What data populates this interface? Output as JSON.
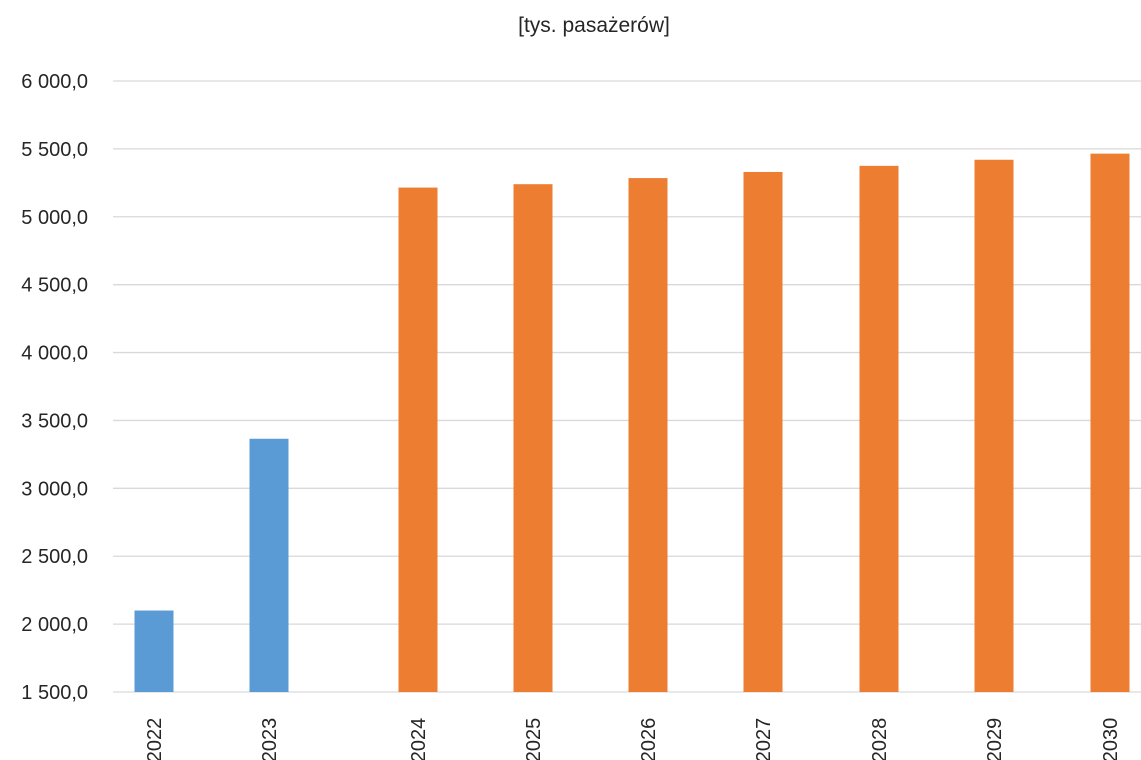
{
  "chart_data": {
    "type": "bar",
    "title": "[tys. pasażerów]",
    "xlabel": "",
    "ylabel": "",
    "ylim": [
      1500,
      6000
    ],
    "yticks": [
      1500,
      2000,
      2500,
      3000,
      3500,
      4000,
      4500,
      5000,
      5500,
      6000
    ],
    "ytick_labels": [
      "1 500,0",
      "2 000,0",
      "2 500,0",
      "3 000,0",
      "3 500,0",
      "4 000,0",
      "4 500,0",
      "5 000,0",
      "5 500,0",
      "6 000,0"
    ],
    "categories": [
      "2022",
      "2023",
      "2024",
      "2025",
      "2026",
      "2027",
      "2028",
      "2029",
      "2030"
    ],
    "series": [
      {
        "values": [
          2100,
          3365,
          null,
          null,
          null,
          null,
          null,
          null,
          null
        ],
        "color": "#5b9bd5"
      },
      {
        "values": [
          null,
          null,
          5215,
          5240,
          5285,
          5330,
          5375,
          5420,
          5465
        ],
        "color": "#ed7d31"
      }
    ],
    "grid": true,
    "legend": "none"
  }
}
